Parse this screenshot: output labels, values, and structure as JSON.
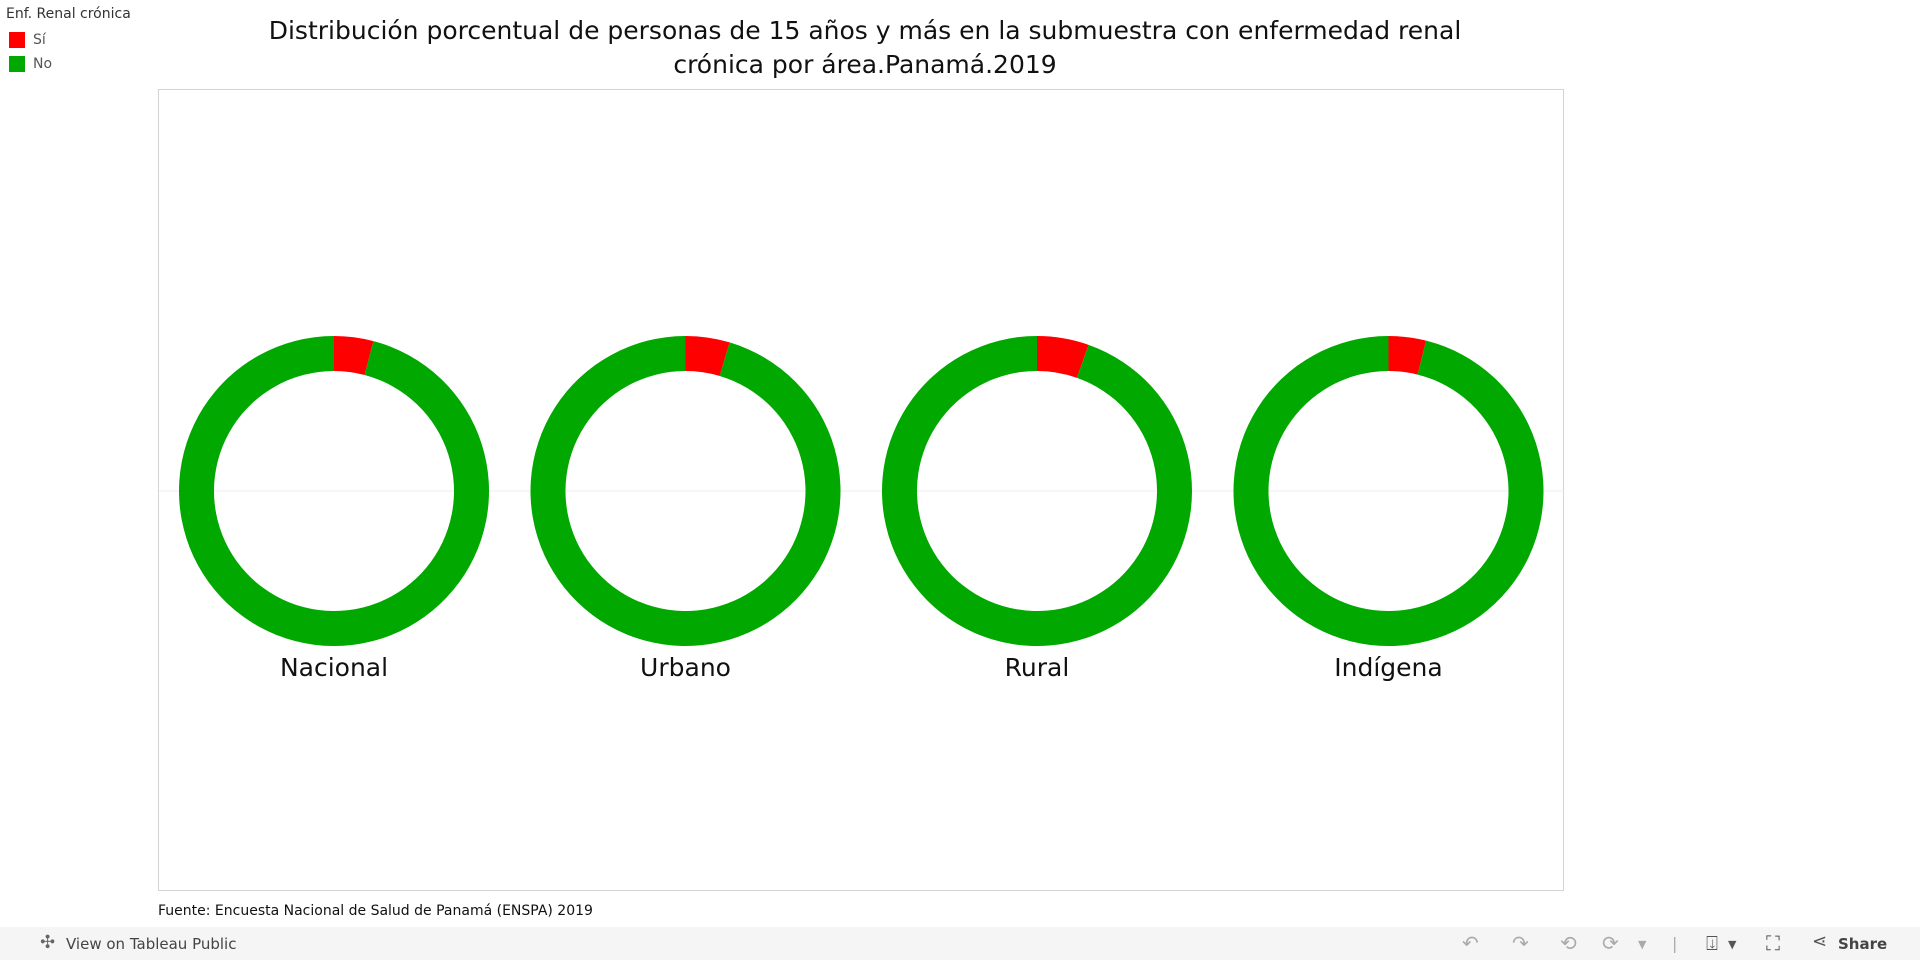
{
  "title": "Distribución porcentual de personas de 15 años y más  en la submuestra con enfermedad renal crónica por área.Panamá.2019",
  "legend": {
    "title": "Enf. Renal crónica",
    "items": [
      {
        "label": "Sí",
        "color": "#ff0000"
      },
      {
        "label": "No",
        "color": "#00a800"
      }
    ]
  },
  "source": "Fuente: Encuesta Nacional de Salud de Panamá (ENSPA) 2019",
  "toolbar": {
    "view_label": "View on Tableau Public",
    "share_label": "Share"
  },
  "chart_data": {
    "type": "pie",
    "variant": "donut",
    "categories": [
      "Nacional",
      "Urbano",
      "Rural",
      "Indígena"
    ],
    "series": [
      {
        "name": "Sí",
        "color": "#ff0000",
        "values": [
          4.1,
          4.6,
          5.4,
          3.9
        ]
      },
      {
        "name": "No",
        "color": "#00a800",
        "values": [
          95.9,
          95.4,
          94.6,
          96.1
        ]
      }
    ],
    "unit": "%",
    "legend_position": "top-left"
  }
}
